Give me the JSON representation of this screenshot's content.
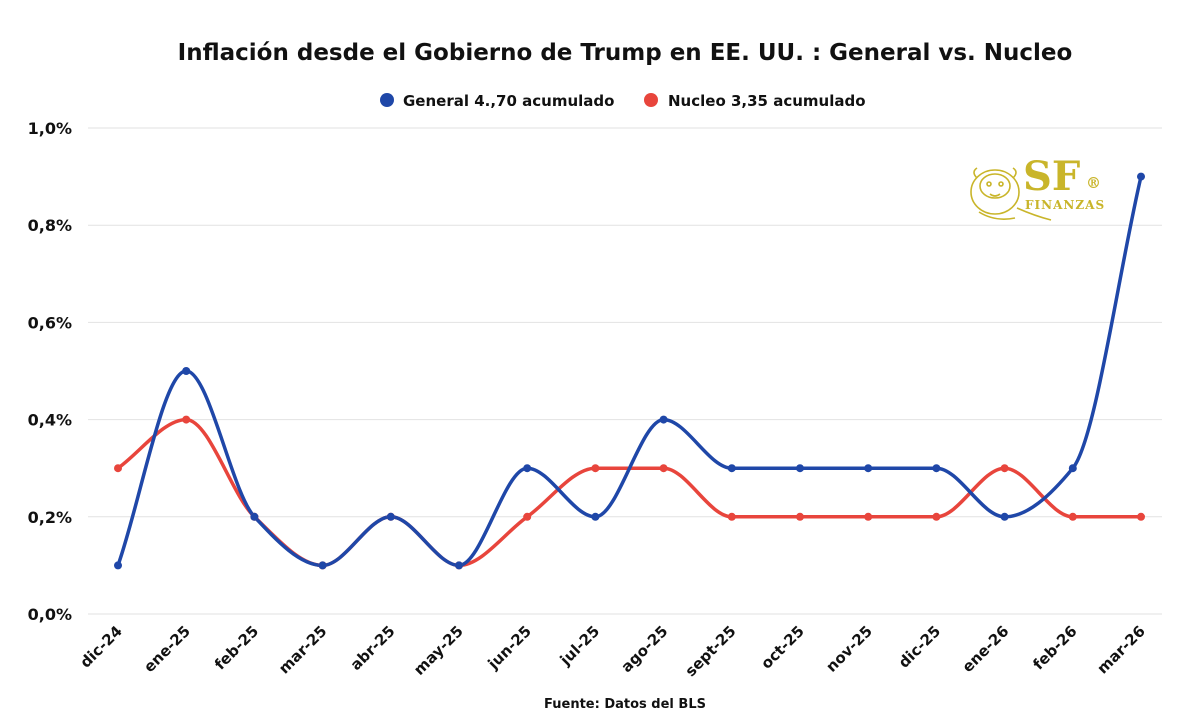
{
  "chart_data": {
    "type": "line",
    "title": "Inflación desde el Gobierno de Trump en EE. UU. : General vs. Nucleo",
    "categories": [
      "dic-24",
      "ene-25",
      "feb-25",
      "mar-25",
      "abr-25",
      "may-25",
      "jun-25",
      "jul-25",
      "ago-25",
      "sept-25",
      "oct-25",
      "nov-25",
      "dic-25",
      "ene-26",
      "feb-26",
      "mar-26"
    ],
    "series": [
      {
        "name": "General 4.,70 acumulado",
        "color": "#1f47a8",
        "values": [
          0.1,
          0.5,
          0.2,
          0.1,
          0.2,
          0.1,
          0.3,
          0.2,
          0.4,
          0.3,
          0.3,
          0.3,
          0.3,
          0.2,
          0.3,
          0.9
        ]
      },
      {
        "name": "Nucleo 3,35 acumulado",
        "color": "#e8453c",
        "values": [
          0.3,
          0.4,
          0.2,
          0.1,
          0.2,
          0.1,
          0.2,
          0.3,
          0.3,
          0.2,
          0.2,
          0.2,
          0.2,
          0.3,
          0.2,
          0.2
        ]
      }
    ],
    "yticks": [
      "0,0%",
      "0,2%",
      "0,4%",
      "0,6%",
      "0,8%",
      "1,0%"
    ],
    "ylim": [
      0,
      1.0
    ],
    "grid": true,
    "legend_position": "top-center",
    "xlabel": "",
    "ylabel": "",
    "source": "Fuente: Datos del BLS"
  },
  "logo": {
    "main": "SF",
    "sub": "FINANZAS",
    "mark": "®",
    "color": "#c9b52a"
  }
}
